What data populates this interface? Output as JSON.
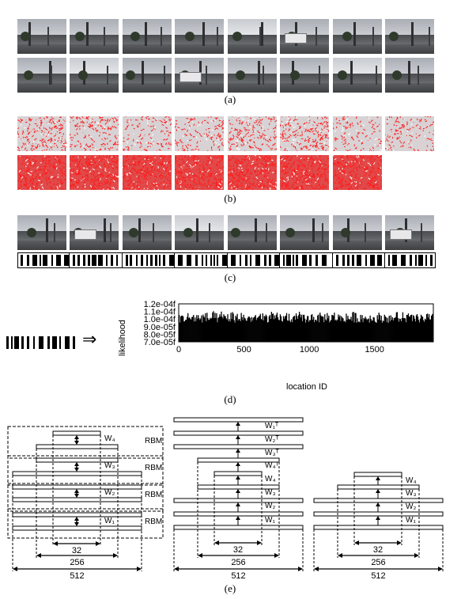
{
  "captions": {
    "a": "(a)",
    "b": "(b)",
    "c": "(c)",
    "d": "(d)",
    "e": "(e)"
  },
  "panel_d": {
    "arrow": "⇒",
    "chart_data": {
      "type": "bar",
      "ylabel": "likelihood",
      "xlabel": "location ID",
      "yticks": [
        "7.0e-05f",
        "8.0e-05f",
        "9.0e-05f",
        "1.0e-04f",
        "1.1e-04f",
        "1.2e-04f"
      ],
      "ytick_values": [
        7e-05,
        8e-05,
        9e-05,
        0.0001,
        0.00011,
        0.00012
      ],
      "xticks": [
        "0",
        "500",
        "1000",
        "1500"
      ],
      "xtick_values": [
        0,
        500,
        1000,
        1500
      ],
      "xlim": [
        0,
        1950
      ],
      "ylim": [
        7e-05,
        0.00012
      ],
      "value_range": [
        9.5e-05,
        0.000111
      ]
    }
  },
  "panel_e": {
    "rbm_label": "RBM",
    "left": {
      "weights": [
        "W4",
        "W3",
        "W2",
        "W1"
      ],
      "dims": [
        "32",
        "256",
        "512"
      ]
    },
    "middle": {
      "weights": [
        "W1T",
        "W2T",
        "W3T",
        "W4T",
        "W4",
        "W3",
        "W2",
        "W1"
      ],
      "weight_display": [
        "W₁ᵀ",
        "W₂ᵀ",
        "W₃ᵀ",
        "W₄ᵀ",
        "W₄",
        "W₃",
        "W₂",
        "W₁"
      ],
      "dims": [
        "32",
        "256",
        "512"
      ]
    },
    "right": {
      "weights": [
        "W4",
        "W3",
        "W2",
        "W1"
      ],
      "dims": [
        "32",
        "256",
        "512"
      ]
    },
    "left_weight_display": [
      "W₄",
      "W₃",
      "W₂",
      "W₁"
    ],
    "right_weight_display": [
      "W₄",
      "W₃",
      "W₂",
      "W₁"
    ]
  }
}
